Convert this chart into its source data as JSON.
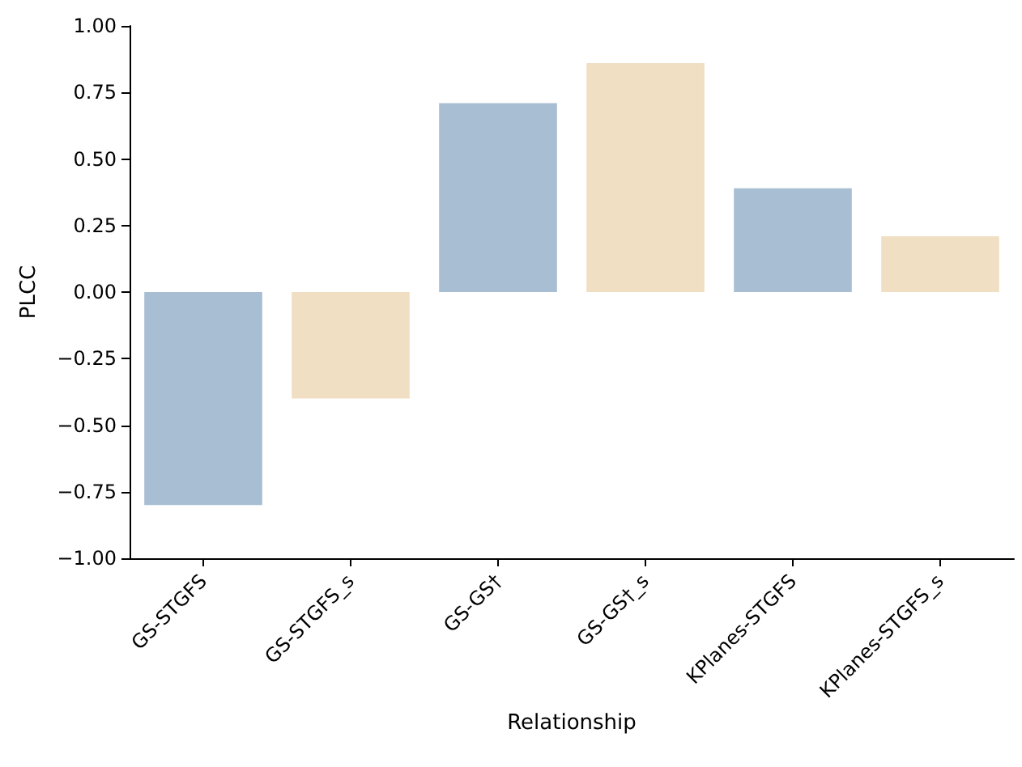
{
  "chart_data": {
    "type": "bar",
    "xlabel": "Relationship",
    "ylabel": "PLCC",
    "categories": [
      "GS-STGFS",
      "GS-STGFS_s",
      "GS-GS†",
      "GS-GS†_s",
      "KPlanes-STGFS",
      "KPlanes-STGFS_s"
    ],
    "values": [
      -0.8,
      -0.4,
      0.71,
      0.86,
      0.39,
      0.21
    ],
    "colors": [
      "#a7bed3",
      "#f1dfc4",
      "#a7bed3",
      "#f1dfc4",
      "#a7bed3",
      "#f1dfc4"
    ],
    "ylim": [
      -1.0,
      1.0
    ],
    "yticks": [
      {
        "value": -1.0,
        "label": "−1.00"
      },
      {
        "value": -0.75,
        "label": "−0.75"
      },
      {
        "value": -0.5,
        "label": "−0.50"
      },
      {
        "value": -0.25,
        "label": "−0.25"
      },
      {
        "value": 0,
        "label": "0.00"
      },
      {
        "value": 0.25,
        "label": "0.25"
      },
      {
        "value": 0.5,
        "label": "0.50"
      },
      {
        "value": 0.75,
        "label": "0.75"
      },
      {
        "value": 1.0,
        "label": "1.00"
      }
    ],
    "grid": false
  }
}
